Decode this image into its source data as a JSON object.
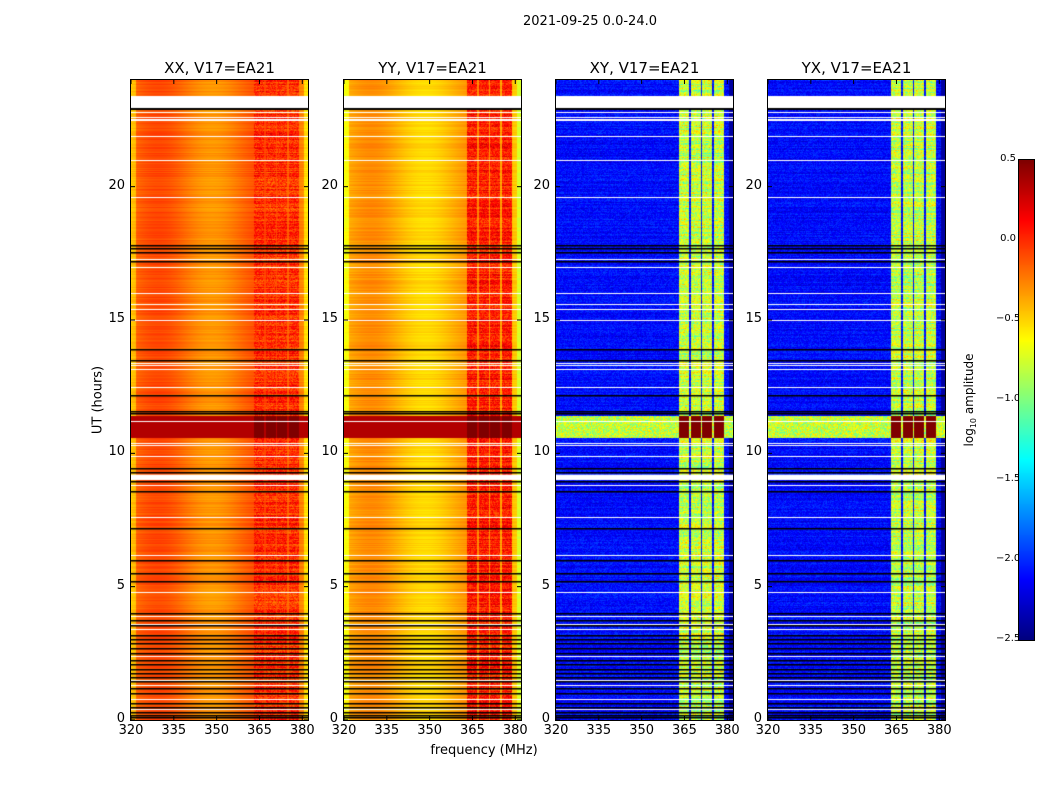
{
  "chart_data": {
    "type": "heatmap",
    "title": "2021-09-25 0.0-24.0",
    "xlabel": "frequency (MHz)",
    "ylabel": "UT (hours)",
    "xlim": [
      320,
      382
    ],
    "ylim": [
      0,
      24
    ],
    "xticks": [
      "320",
      "335",
      "350",
      "365",
      "380"
    ],
    "xtick_values": [
      320,
      335,
      350,
      365,
      380
    ],
    "yticks": [
      "0",
      "5",
      "10",
      "15",
      "20"
    ],
    "ytick_values": [
      0,
      5,
      10,
      15,
      20
    ],
    "colorbar": {
      "label_main": "log",
      "label_sub": "10",
      "label_rest": " amplitude",
      "colormap": "jet",
      "range": [
        -2.5,
        0.5
      ],
      "ticks": [
        "0.5",
        "0.0",
        "−0.5",
        "−1.0",
        "−1.5",
        "−2.0",
        "−2.5"
      ],
      "tick_values": [
        0.5,
        0.0,
        -0.5,
        -1.0,
        -1.5,
        -2.0,
        -2.5
      ]
    },
    "panels": [
      {
        "title": "XX, V17=EA21",
        "pol": "XX",
        "baseline_level": -0.2,
        "rfi_level": 0.1,
        "type": "parallel"
      },
      {
        "title": "YY, V17=EA21",
        "pol": "YY",
        "baseline_level": -0.4,
        "rfi_level": 0.15,
        "type": "parallel"
      },
      {
        "title": "XY, V17=EA21",
        "pol": "XY",
        "baseline_level": -2.1,
        "rfi_level": -0.9,
        "type": "cross"
      },
      {
        "title": "YX, V17=EA21",
        "pol": "YX",
        "baseline_level": -2.1,
        "rfi_level": -0.9,
        "type": "cross"
      }
    ],
    "rfi_band_mhz": [
      363,
      380
    ],
    "rfi_subbands_mhz": [
      [
        363,
        366.5
      ],
      [
        367,
        370.5
      ],
      [
        371,
        374.5
      ],
      [
        375,
        378.5
      ]
    ],
    "strong_rfi_hours": [
      10.6,
      11.4
    ],
    "flagged_hours_white": [
      23.05,
      23.3,
      22.8,
      22.6,
      22.55,
      22.5,
      21.9,
      21.0,
      19.6,
      17.3,
      17.0,
      16.0,
      15.6,
      15.4,
      15.0,
      13.4,
      13.3,
      13.15,
      12.5,
      11.2,
      10.4,
      10.3,
      9.9,
      9.15,
      9.1,
      9.05,
      8.8,
      7.6,
      6.2,
      4.8,
      3.9,
      3.6,
      3.4,
      2.4,
      1.5,
      1.3,
      0.8,
      0.4
    ],
    "flagged_hours_black": [
      17.8,
      17.7,
      17.55,
      17.2,
      13.9,
      13.5,
      12.2,
      11.6,
      11.5,
      9.45,
      9.3,
      8.95,
      8.6,
      7.2,
      6.0,
      5.5,
      5.2,
      4.0,
      3.75,
      3.55,
      3.2,
      3.05,
      2.9,
      2.7,
      2.5,
      2.25,
      2.1,
      1.9,
      1.75,
      1.6,
      1.45,
      1.2,
      1.0,
      0.65,
      0.5,
      0.3,
      0.2,
      0.1
    ]
  }
}
